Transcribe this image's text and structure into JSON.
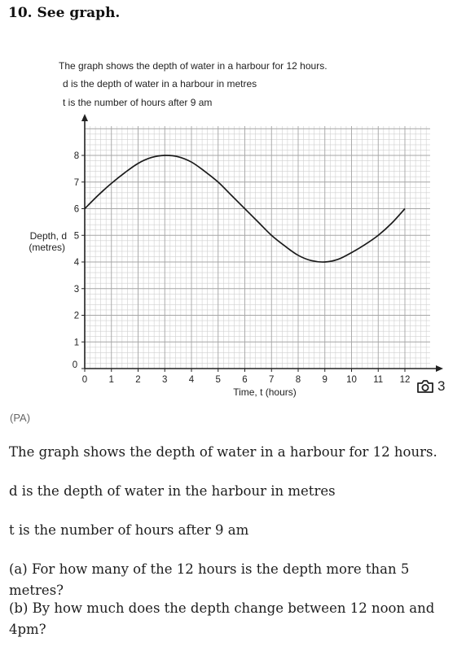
{
  "heading": "10. See graph.",
  "figure": {
    "caption_lines": [
      "The graph shows the depth of water in a harbour for 12 hours.",
      "d is the depth of water in a harbour in metres",
      "t is the number of hours after 9 am"
    ],
    "y_axis_label_line1": "Depth, d",
    "y_axis_label_line2": "(metres)",
    "x_axis_label": "Time, t (hours)"
  },
  "chart_data": {
    "type": "line",
    "title": "",
    "xlabel": "Time, t (hours)",
    "ylabel": "Depth, d (metres)",
    "xlim": [
      0,
      12
    ],
    "ylim": [
      0,
      8
    ],
    "x_ticks": [
      0,
      1,
      2,
      3,
      4,
      5,
      6,
      7,
      8,
      9,
      10,
      11,
      12
    ],
    "y_ticks": [
      0,
      1,
      2,
      3,
      4,
      5,
      6,
      7,
      8
    ],
    "grid": true,
    "series": [
      {
        "x": [
          0,
          0.5,
          1,
          1.5,
          2,
          2.5,
          3,
          3.5,
          4,
          4.5,
          5,
          5.5,
          6,
          6.5,
          7,
          7.5,
          8,
          8.5,
          9,
          9.5,
          10,
          10.5,
          11,
          11.5,
          12
        ],
        "values": [
          6,
          6.5,
          6.95,
          7.35,
          7.7,
          7.92,
          8,
          7.95,
          7.75,
          7.4,
          7,
          6.5,
          6,
          5.5,
          5,
          4.6,
          4.25,
          4.05,
          4,
          4.1,
          4.35,
          4.65,
          5,
          5.45,
          6
        ]
      }
    ],
    "line_color": "#1a1a1a"
  },
  "gallery": {
    "icon": "camera-icon",
    "count": "3"
  },
  "credit": "(PA)",
  "paragraphs": [
    "The graph shows the depth of water in a harbour for 12 hours.",
    "d is the depth of water in the harbour in metres",
    "t is the number of hours after 9 am",
    "(a) For how many of the 12 hours is the depth more than 5 metres?",
    "(b) By how much does the depth change between 12 noon and 4pm?"
  ]
}
